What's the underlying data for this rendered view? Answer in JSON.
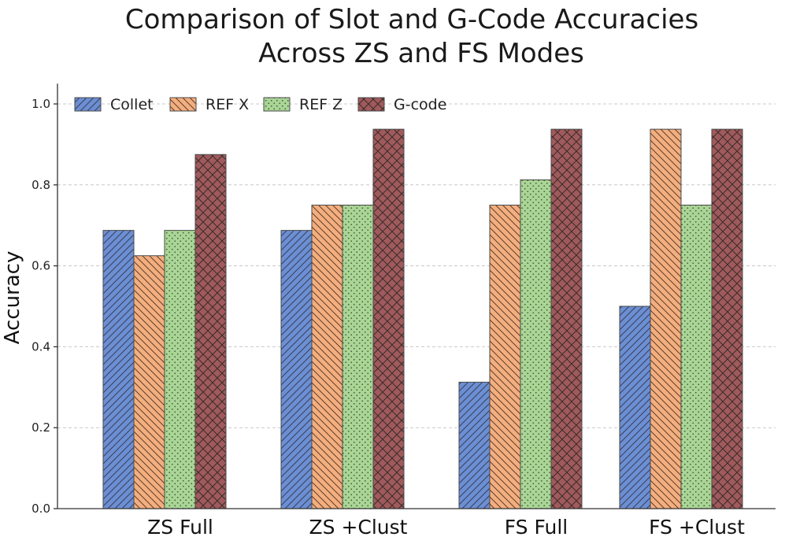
{
  "chart_data": {
    "type": "bar",
    "title_lines": [
      "Comparison of Slot and G-Code Accuracies",
      "Across ZS and FS Modes"
    ],
    "xlabel": "",
    "ylabel": "Accuracy",
    "ylim": [
      0,
      1.05
    ],
    "yticks": [
      "0.0",
      "0.2",
      "0.4",
      "0.6",
      "0.8",
      "1.0"
    ],
    "ytick_values": [
      0.0,
      0.2,
      0.4,
      0.6,
      0.8,
      1.0
    ],
    "grid": true,
    "legend_position": "top-left",
    "categories": [
      "ZS Full",
      "ZS +Clust",
      "FS Full",
      "FS +Clust"
    ],
    "series": [
      {
        "name": "Collet",
        "values": [
          0.6875,
          0.6875,
          0.3125,
          0.5
        ],
        "color": "#6b8fd4",
        "hatch": "diag-up"
      },
      {
        "name": "REF X",
        "values": [
          0.625,
          0.75,
          0.75,
          0.9375
        ],
        "color": "#f4ae7e",
        "hatch": "diag-down"
      },
      {
        "name": "REF Z",
        "values": [
          0.6875,
          0.75,
          0.8125,
          0.75
        ],
        "color": "#a9d695",
        "hatch": "dots"
      },
      {
        "name": "G-code",
        "values": [
          0.875,
          0.9375,
          0.9375,
          0.9375
        ],
        "color": "#a05a5c",
        "hatch": "cross"
      }
    ]
  }
}
